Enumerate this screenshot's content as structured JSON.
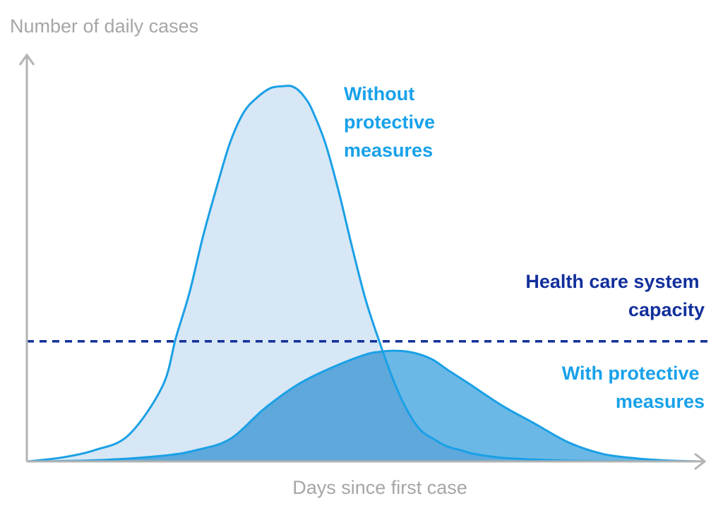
{
  "chart_data": {
    "type": "area",
    "xlabel": "Days since first case",
    "ylabel": "Number of daily cases",
    "axis_ticks": false,
    "grid": false,
    "xlim": [
      0,
      100
    ],
    "ylim": [
      0,
      100
    ],
    "series": [
      {
        "name": "Without protective measures",
        "label_lines": [
          "Without",
          "protective",
          "measures"
        ],
        "line_color": "#1aa0e6",
        "fill_color": "#d7e7f5",
        "x": [
          0,
          5,
          10,
          15,
          20,
          22,
          24,
          26,
          28,
          30,
          32,
          34,
          36,
          38,
          39,
          40,
          41,
          42,
          44,
          46,
          48,
          50,
          52,
          54,
          56,
          58,
          60,
          62,
          64,
          66,
          70,
          75,
          80,
          85,
          90,
          100
        ],
        "y": [
          0,
          1,
          3,
          7,
          20,
          33,
          45,
          60,
          73,
          85,
          93,
          97,
          99.5,
          100,
          100,
          99,
          97,
          94,
          85,
          72,
          57,
          43,
          32,
          22,
          14,
          8.5,
          6,
          4,
          3,
          2,
          1,
          0.5,
          0.2,
          0.1,
          0.05,
          0
        ]
      },
      {
        "name": "With protective measures",
        "label_lines": [
          "With protective",
          "measures"
        ],
        "line_color": "#1aa0e6",
        "fill_color": "#6bb8e6",
        "x": [
          0,
          10,
          20,
          25,
          30,
          35,
          40,
          45,
          50,
          52,
          54,
          56,
          58,
          60,
          62,
          65,
          70,
          75,
          80,
          85,
          90,
          95,
          100
        ],
        "y": [
          0,
          0.3,
          1.5,
          3,
          6,
          14,
          20.5,
          25,
          28.5,
          29.2,
          29.5,
          29.3,
          28.5,
          27,
          24.5,
          21,
          15,
          10,
          5,
          2,
          0.8,
          0.2,
          0
        ]
      }
    ],
    "overlap_fill_color": "#5ea8dc",
    "threshold": {
      "name": "Health care system capacity",
      "label_lines": [
        "Health care system",
        "capacity"
      ],
      "y": 32,
      "color": "#13309c",
      "style": "dashed"
    },
    "axis_color": "#b3b3b3",
    "axis_label_color": "#a6a6a6",
    "series_label_color": "#18a1ea"
  }
}
